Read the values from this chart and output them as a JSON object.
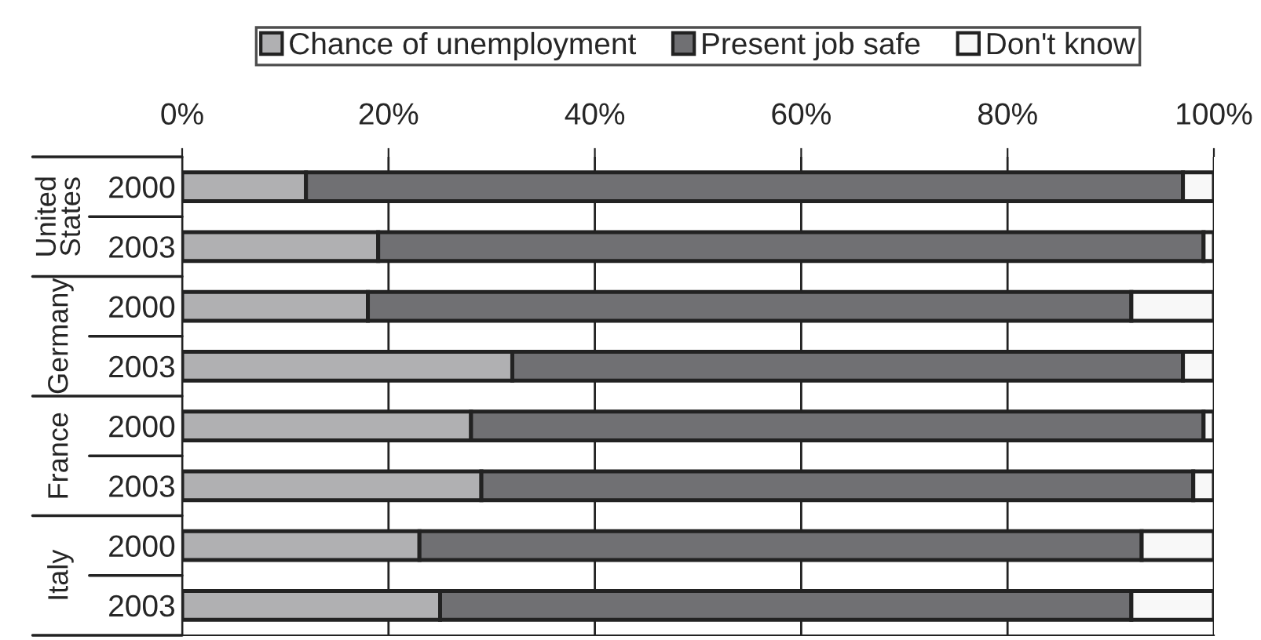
{
  "chart_data": {
    "type": "bar",
    "orientation": "horizontal",
    "stacked": true,
    "categories": [
      "2000",
      "2003",
      "2000",
      "2003",
      "2000",
      "2003",
      "2000",
      "2003"
    ],
    "series": [
      {
        "name": "Chance of unemployment",
        "color": "#b0b0b2",
        "values": [
          12,
          19,
          18,
          32,
          28,
          29,
          23,
          25
        ]
      },
      {
        "name": "Present job safe",
        "color": "#707073",
        "values": [
          85,
          80,
          74,
          65,
          71,
          69,
          70,
          67
        ]
      },
      {
        "name": "Don't know",
        "color": "#f8f8f8",
        "values": [
          3,
          1,
          8,
          3,
          1,
          2,
          7,
          8
        ]
      }
    ],
    "xlim": [
      0,
      100
    ],
    "xticks": [
      {
        "value": 0,
        "label": "0%"
      },
      {
        "value": 20,
        "label": "20%"
      },
      {
        "value": 40,
        "label": "40%"
      },
      {
        "value": 60,
        "label": "60%"
      },
      {
        "value": 80,
        "label": "80%"
      },
      {
        "value": 100,
        "label": "100%"
      }
    ],
    "annotations": [
      "United\nStates",
      "Germany",
      "France",
      "Italy"
    ],
    "grid": "x",
    "legend": "top"
  }
}
